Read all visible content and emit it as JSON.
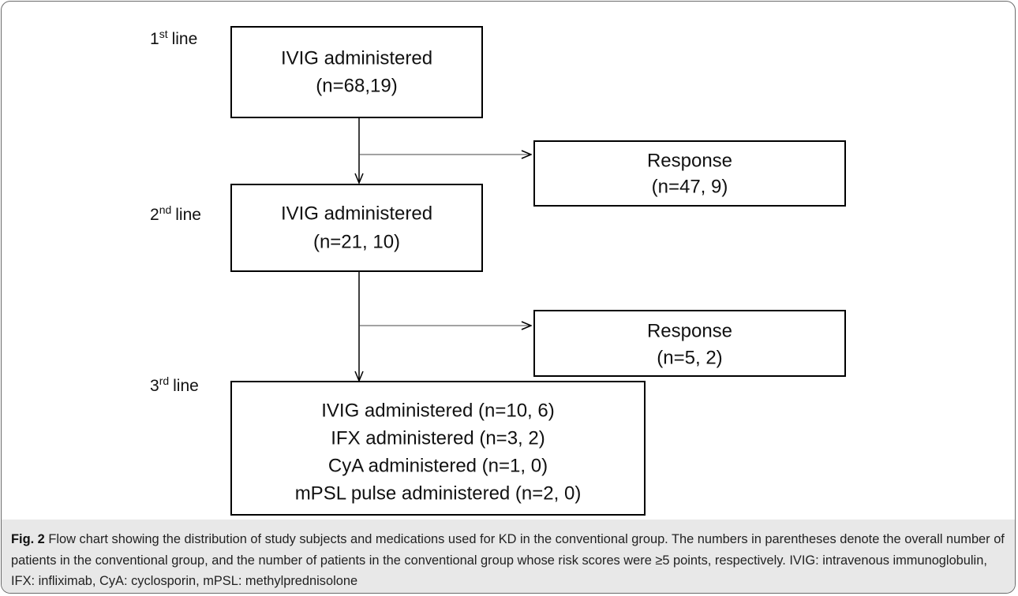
{
  "stages": [
    {
      "ordinal": "1",
      "suffix": "st",
      "word": "line"
    },
    {
      "ordinal": "2",
      "suffix": "nd",
      "word": "line"
    },
    {
      "ordinal": "3",
      "suffix": "rd",
      "word": "line"
    }
  ],
  "nodes": [
    {
      "lines": [
        "IVIG administered",
        "(n=68,19)"
      ]
    },
    {
      "lines": [
        "Response",
        "(n=47, 9)"
      ]
    },
    {
      "lines": [
        "IVIG administered",
        "(n=21, 10)"
      ]
    },
    {
      "lines": [
        "Response",
        "(n=5, 2)"
      ]
    },
    {
      "lines": [
        "IVIG administered (n=10, 6)",
        "IFX administered (n=3, 2)",
        "CyA administered (n=1, 0)",
        "mPSL pulse administered (n=2, 0)"
      ]
    }
  ],
  "caption": {
    "label": "Fig. 2",
    "text": "Flow chart showing the distribution of study subjects and medications used for KD in the conventional group. The numbers in parentheses denote the overall number of patients in the conventional group, and the number of patients in the conventional group whose risk scores were ≥5 points, respectively. IVIG: intravenous immunoglobulin, IFX: infliximab, CyA: cyclosporin, mPSL: methylprednisolone"
  }
}
